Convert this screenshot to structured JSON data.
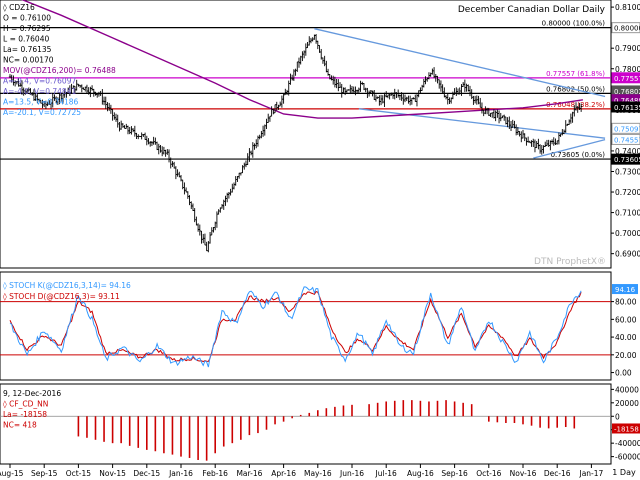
{
  "chart_data": [
    {
      "panel": "price",
      "type": "ohlc",
      "title": "December Canadian Dollar Daily",
      "watermark": "DTN ProphetX®",
      "legend": [
        {
          "label": "◊ CDZ16",
          "color": "#000000"
        },
        {
          "label": "O = 0.76100",
          "color": "#000000"
        },
        {
          "label": "H = 0.76295",
          "color": "#000000"
        },
        {
          "label": "L = 0.76040",
          "color": "#000000"
        },
        {
          "label": "La= 0.76135",
          "color": "#000000"
        },
        {
          "label": "NC= 0.00170",
          "color": "#000000"
        },
        {
          "label": "MOV(@CDZ16,200)= 0.76488",
          "color": "#8b008b"
        },
        {
          "label": "A=-9.4, V=0.76097",
          "color": "#6a5acd"
        },
        {
          "label": "A=-4.0, V=0.74841",
          "color": "#6a5acd"
        },
        {
          "label": "A=13.5, V=0.74186",
          "color": "#3399ff"
        },
        {
          "label": "A=-20.1, V=0.72725",
          "color": "#3399ff"
        }
      ],
      "yticks": [
        "0.81000",
        "0.80000",
        "0.79000",
        "0.78000",
        "0.77000",
        "0.76000",
        "0.75000",
        "0.74000",
        "0.73000",
        "0.72000",
        "0.71000",
        "0.70000",
        "0.69000"
      ],
      "ylim": [
        0.684,
        0.812
      ],
      "xticks": [
        "Aug-15",
        "Sep-15",
        "Oct-15",
        "Nov-15",
        "Dec-15",
        "Jan-16",
        "Feb-16",
        "Mar-16",
        "Apr-16",
        "May-16",
        "Jun-16",
        "Jul-16",
        "Aug-16",
        "Sep-16",
        "Oct-16",
        "Nov-16",
        "Dec-16",
        "Jan-17"
      ],
      "xlabel_right": "1 Day",
      "close_keypoints": [
        {
          "month": 0.0,
          "price": 0.776
        },
        {
          "month": 1.0,
          "price": 0.762
        },
        {
          "month": 2.0,
          "price": 0.772
        },
        {
          "month": 2.6,
          "price": 0.768
        },
        {
          "month": 3.2,
          "price": 0.752
        },
        {
          "month": 4.0,
          "price": 0.746
        },
        {
          "month": 4.6,
          "price": 0.738
        },
        {
          "month": 5.2,
          "price": 0.718
        },
        {
          "month": 5.6,
          "price": 0.698
        },
        {
          "month": 5.75,
          "price": 0.692
        },
        {
          "month": 6.1,
          "price": 0.712
        },
        {
          "month": 6.5,
          "price": 0.722
        },
        {
          "month": 7.0,
          "price": 0.738
        },
        {
          "month": 7.6,
          "price": 0.758
        },
        {
          "month": 8.0,
          "price": 0.766
        },
        {
          "month": 8.4,
          "price": 0.782
        },
        {
          "month": 8.9,
          "price": 0.797
        },
        {
          "month": 9.3,
          "price": 0.776
        },
        {
          "month": 9.8,
          "price": 0.768
        },
        {
          "month": 10.3,
          "price": 0.772
        },
        {
          "month": 10.8,
          "price": 0.764
        },
        {
          "month": 11.2,
          "price": 0.768
        },
        {
          "month": 11.8,
          "price": 0.764
        },
        {
          "month": 12.3,
          "price": 0.779
        },
        {
          "month": 12.8,
          "price": 0.765
        },
        {
          "month": 13.3,
          "price": 0.772
        },
        {
          "month": 13.8,
          "price": 0.76
        },
        {
          "month": 14.4,
          "price": 0.756
        },
        {
          "month": 15.0,
          "price": 0.747
        },
        {
          "month": 15.5,
          "price": 0.741
        },
        {
          "month": 16.0,
          "price": 0.745
        },
        {
          "month": 16.5,
          "price": 0.76
        },
        {
          "month": 16.75,
          "price": 0.7614
        }
      ],
      "moving_average_200": [
        {
          "month": 0.0,
          "price": 0.816
        },
        {
          "month": 1.5,
          "price": 0.806
        },
        {
          "month": 3.0,
          "price": 0.795
        },
        {
          "month": 4.5,
          "price": 0.784
        },
        {
          "month": 6.0,
          "price": 0.773
        },
        {
          "month": 7.0,
          "price": 0.765
        },
        {
          "month": 8.0,
          "price": 0.758
        },
        {
          "month": 9.0,
          "price": 0.756
        },
        {
          "month": 10.0,
          "price": 0.756
        },
        {
          "month": 11.0,
          "price": 0.757
        },
        {
          "month": 12.0,
          "price": 0.758
        },
        {
          "month": 13.0,
          "price": 0.759
        },
        {
          "month": 14.0,
          "price": 0.76
        },
        {
          "month": 15.0,
          "price": 0.761
        },
        {
          "month": 16.0,
          "price": 0.763
        },
        {
          "month": 16.75,
          "price": 0.7649
        }
      ],
      "horizontal_levels": [
        {
          "price": 0.8,
          "label": "0.80000 (100.0%)",
          "color": "#000000"
        },
        {
          "price": 0.77557,
          "label": "0.77557 (61.8%)",
          "color": "#cc00cc"
        },
        {
          "price": 0.76802,
          "label": "0.76802 (50.0%)",
          "color": "#000000"
        },
        {
          "price": 0.76048,
          "label": "0.76048 (38.2%)",
          "color": "#cc0000"
        },
        {
          "price": 0.73605,
          "label": "0.73605 (0.0%)",
          "color": "#000000"
        }
      ],
      "trendlines": [
        {
          "from": {
            "month": 8.9,
            "price": 0.7995
          },
          "to": {
            "month": 17.4,
            "price": 0.7665
          },
          "color": "#6699dd"
        },
        {
          "from": {
            "month": 10.2,
            "price": 0.7605
          },
          "to": {
            "month": 17.4,
            "price": 0.7462
          },
          "color": "#6699dd"
        },
        {
          "from": {
            "month": 15.3,
            "price": 0.7365
          },
          "to": {
            "month": 17.4,
            "price": 0.7455
          },
          "color": "#6699dd"
        }
      ],
      "right_tags": [
        {
          "text": "0.80000",
          "price": 0.8,
          "bg": "#ffffff",
          "fg": "#000000"
        },
        {
          "text": "0.77557",
          "price": 0.7756,
          "bg": "#cc00cc",
          "fg": "#ffffff"
        },
        {
          "text": "0.76802",
          "price": 0.7692,
          "bg": "#555555",
          "fg": "#ffffff"
        },
        {
          "text": "0.76488",
          "price": 0.7649,
          "bg": "#8b008b",
          "fg": "#ffffff"
        },
        {
          "text": "0.76135",
          "price": 0.7614,
          "bg": "#000000",
          "fg": "#ffffff"
        },
        {
          "text": "0.75097",
          "price": 0.751,
          "bg": "#ffffff",
          "fg": "#3399ff"
        },
        {
          "text": "0.74557",
          "price": 0.7456,
          "bg": "#ffffff",
          "fg": "#3399ff"
        },
        {
          "text": "0.73605",
          "price": 0.736,
          "bg": "#000000",
          "fg": "#ffffff"
        }
      ]
    },
    {
      "panel": "stochastics",
      "type": "line",
      "legend": [
        {
          "label": "◊ STOCH K(@CDZ16,3,14)= 94.16",
          "color": "#3399ff"
        },
        {
          "label": "◊ STOCH D(@CDZ16,3)= 93.11",
          "color": "#cc0000"
        }
      ],
      "yticks": [
        "80.00",
        "60.00",
        "40.00",
        "20.00",
        "0.00"
      ],
      "ylim": [
        -5,
        110
      ],
      "reference_lines": [
        80,
        20
      ],
      "right_tag": "94.16",
      "k_keypoints": [
        {
          "month": 0.0,
          "value": 55
        },
        {
          "month": 0.5,
          "value": 20
        },
        {
          "month": 1.0,
          "value": 48
        },
        {
          "month": 1.5,
          "value": 25
        },
        {
          "month": 2.0,
          "value": 88
        },
        {
          "month": 2.4,
          "value": 60
        },
        {
          "month": 2.8,
          "value": 15
        },
        {
          "month": 3.3,
          "value": 28
        },
        {
          "month": 3.8,
          "value": 12
        },
        {
          "month": 4.3,
          "value": 30
        },
        {
          "month": 4.8,
          "value": 10
        },
        {
          "month": 5.3,
          "value": 18
        },
        {
          "month": 5.8,
          "value": 8
        },
        {
          "month": 6.2,
          "value": 70
        },
        {
          "month": 6.6,
          "value": 55
        },
        {
          "month": 7.0,
          "value": 92
        },
        {
          "month": 7.4,
          "value": 75
        },
        {
          "month": 7.8,
          "value": 90
        },
        {
          "month": 8.2,
          "value": 60
        },
        {
          "month": 8.6,
          "value": 94
        },
        {
          "month": 9.0,
          "value": 92
        },
        {
          "month": 9.4,
          "value": 40
        },
        {
          "month": 9.8,
          "value": 15
        },
        {
          "month": 10.2,
          "value": 45
        },
        {
          "month": 10.6,
          "value": 20
        },
        {
          "month": 11.0,
          "value": 60
        },
        {
          "month": 11.4,
          "value": 30
        },
        {
          "month": 11.8,
          "value": 22
        },
        {
          "month": 12.3,
          "value": 90
        },
        {
          "month": 12.8,
          "value": 30
        },
        {
          "month": 13.2,
          "value": 75
        },
        {
          "month": 13.6,
          "value": 22
        },
        {
          "month": 14.0,
          "value": 60
        },
        {
          "month": 14.4,
          "value": 35
        },
        {
          "month": 14.8,
          "value": 12
        },
        {
          "month": 15.2,
          "value": 45
        },
        {
          "month": 15.6,
          "value": 12
        },
        {
          "month": 16.0,
          "value": 40
        },
        {
          "month": 16.4,
          "value": 80
        },
        {
          "month": 16.75,
          "value": 94.16
        }
      ],
      "d_keypoints": [
        {
          "month": 0.0,
          "value": 58
        },
        {
          "month": 0.5,
          "value": 26
        },
        {
          "month": 1.0,
          "value": 42
        },
        {
          "month": 1.5,
          "value": 30
        },
        {
          "month": 2.0,
          "value": 80
        },
        {
          "month": 2.4,
          "value": 68
        },
        {
          "month": 2.8,
          "value": 22
        },
        {
          "month": 3.3,
          "value": 25
        },
        {
          "month": 3.8,
          "value": 17
        },
        {
          "month": 4.3,
          "value": 26
        },
        {
          "month": 4.8,
          "value": 14
        },
        {
          "month": 5.3,
          "value": 16
        },
        {
          "month": 5.8,
          "value": 12
        },
        {
          "month": 6.2,
          "value": 60
        },
        {
          "month": 6.6,
          "value": 60
        },
        {
          "month": 7.0,
          "value": 86
        },
        {
          "month": 7.4,
          "value": 80
        },
        {
          "month": 7.8,
          "value": 85
        },
        {
          "month": 8.2,
          "value": 68
        },
        {
          "month": 8.6,
          "value": 90
        },
        {
          "month": 9.0,
          "value": 90
        },
        {
          "month": 9.4,
          "value": 50
        },
        {
          "month": 9.8,
          "value": 22
        },
        {
          "month": 10.2,
          "value": 38
        },
        {
          "month": 10.6,
          "value": 26
        },
        {
          "month": 11.0,
          "value": 52
        },
        {
          "month": 11.4,
          "value": 36
        },
        {
          "month": 11.8,
          "value": 26
        },
        {
          "month": 12.3,
          "value": 82
        },
        {
          "month": 12.8,
          "value": 40
        },
        {
          "month": 13.2,
          "value": 66
        },
        {
          "month": 13.6,
          "value": 30
        },
        {
          "month": 14.0,
          "value": 52
        },
        {
          "month": 14.4,
          "value": 40
        },
        {
          "month": 14.8,
          "value": 18
        },
        {
          "month": 15.2,
          "value": 38
        },
        {
          "month": 15.6,
          "value": 18
        },
        {
          "month": 16.0,
          "value": 34
        },
        {
          "month": 16.4,
          "value": 72
        },
        {
          "month": 16.75,
          "value": 93.11
        }
      ]
    },
    {
      "panel": "cot",
      "type": "bar",
      "legend": [
        {
          "label": "9, 12-Dec-2016",
          "color": "#000000"
        },
        {
          "label": "◊ CF_CD_NN",
          "color": "#cc0000"
        },
        {
          "label": "La= -18158",
          "color": "#cc0000"
        },
        {
          "label": "NC= 418",
          "color": "#cc0000"
        }
      ],
      "yticks": [
        "40000",
        "20000",
        "0",
        "-20000",
        "-40000",
        "-60000"
      ],
      "ylim": [
        -68000,
        45000
      ],
      "right_tag": "-18158",
      "bars": [
        {
          "month": 2.0,
          "value": -30000
        },
        {
          "month": 2.25,
          "value": -32000
        },
        {
          "month": 2.5,
          "value": -35000
        },
        {
          "month": 2.75,
          "value": -38000
        },
        {
          "month": 3.0,
          "value": -40000
        },
        {
          "month": 3.25,
          "value": -40000
        },
        {
          "month": 3.5,
          "value": -44000
        },
        {
          "month": 3.75,
          "value": -47000
        },
        {
          "month": 4.0,
          "value": -50000
        },
        {
          "month": 4.25,
          "value": -52000
        },
        {
          "month": 4.5,
          "value": -55000
        },
        {
          "month": 4.75,
          "value": -57000
        },
        {
          "month": 5.0,
          "value": -60000
        },
        {
          "month": 5.25,
          "value": -62000
        },
        {
          "month": 5.5,
          "value": -65000
        },
        {
          "month": 5.75,
          "value": -66000
        },
        {
          "month": 6.0,
          "value": -55000
        },
        {
          "month": 6.25,
          "value": -45000
        },
        {
          "month": 6.5,
          "value": -40000
        },
        {
          "month": 6.75,
          "value": -35000
        },
        {
          "month": 7.0,
          "value": -28000
        },
        {
          "month": 7.25,
          "value": -25000
        },
        {
          "month": 7.5,
          "value": -20000
        },
        {
          "month": 7.75,
          "value": -12000
        },
        {
          "month": 8.0,
          "value": -8000
        },
        {
          "month": 8.25,
          "value": -3000
        },
        {
          "month": 8.5,
          "value": 2000
        },
        {
          "month": 8.75,
          "value": 5000
        },
        {
          "month": 9.0,
          "value": 9000
        },
        {
          "month": 9.25,
          "value": 12000
        },
        {
          "month": 9.5,
          "value": 14000
        },
        {
          "month": 9.75,
          "value": 16000
        },
        {
          "month": 10.0,
          "value": 17000
        },
        {
          "month": 10.5,
          "value": 18000
        },
        {
          "month": 10.75,
          "value": 20000
        },
        {
          "month": 11.0,
          "value": 22000
        },
        {
          "month": 11.25,
          "value": 23000
        },
        {
          "month": 11.5,
          "value": 24000
        },
        {
          "month": 11.75,
          "value": 24000
        },
        {
          "month": 12.0,
          "value": 23000
        },
        {
          "month": 12.25,
          "value": 22000
        },
        {
          "month": 12.5,
          "value": 23000
        },
        {
          "month": 12.75,
          "value": 24000
        },
        {
          "month": 13.0,
          "value": 22000
        },
        {
          "month": 13.25,
          "value": 20000
        },
        {
          "month": 13.5,
          "value": 18000
        },
        {
          "month": 14.0,
          "value": -8000
        },
        {
          "month": 14.25,
          "value": -9000
        },
        {
          "month": 14.5,
          "value": -10000
        },
        {
          "month": 14.75,
          "value": -10000
        },
        {
          "month": 15.0,
          "value": -12000
        },
        {
          "month": 15.25,
          "value": -14000
        },
        {
          "month": 15.5,
          "value": -17000
        },
        {
          "month": 15.75,
          "value": -18000
        },
        {
          "month": 16.0,
          "value": -17000
        },
        {
          "month": 16.25,
          "value": -16000
        },
        {
          "month": 16.5,
          "value": -18158
        }
      ]
    }
  ]
}
